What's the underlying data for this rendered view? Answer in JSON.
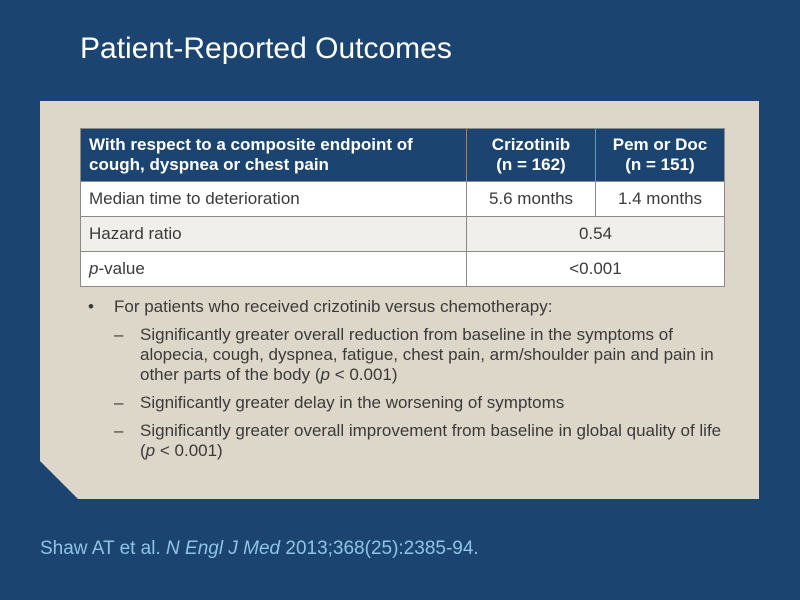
{
  "title": "Patient-Reported Outcomes",
  "table": {
    "header": {
      "endpoint": "With respect to a composite endpoint of cough, dyspnea or chest pain",
      "arm1_name": "Crizotinib",
      "arm1_n": "(n = 162)",
      "arm2_name": "Pem or Doc",
      "arm2_n": "(n = 151)"
    },
    "rows": [
      {
        "label": "Median time to deterioration",
        "arm1": "5.6 months",
        "arm2": "1.4 months"
      },
      {
        "label": "Hazard ratio",
        "value": "0.54"
      },
      {
        "label_italic": "p",
        "label_rest": "-value",
        "value": "<0.001"
      }
    ]
  },
  "bullets": {
    "marker": "•",
    "sub_marker": "–",
    "main": "For patients who received crizotinib versus chemotherapy:",
    "sub1": {
      "before": "Significantly greater overall reduction from baseline in the symptoms of alopecia, cough, dyspnea, fatigue, chest pain, arm/shoulder pain and pain in other parts of the body (",
      "italic": "p",
      "after": " < 0.001)"
    },
    "sub2": "Significantly greater delay in the worsening of symptoms",
    "sub3": {
      "before": "Significantly greater overall improvement from baseline in global quality of life (",
      "italic": "p",
      "after": " < 0.001)"
    }
  },
  "citation": {
    "authors": "Shaw AT et al. ",
    "journal": "N Engl J Med",
    "details": " 2013;368(25):2385-94."
  }
}
